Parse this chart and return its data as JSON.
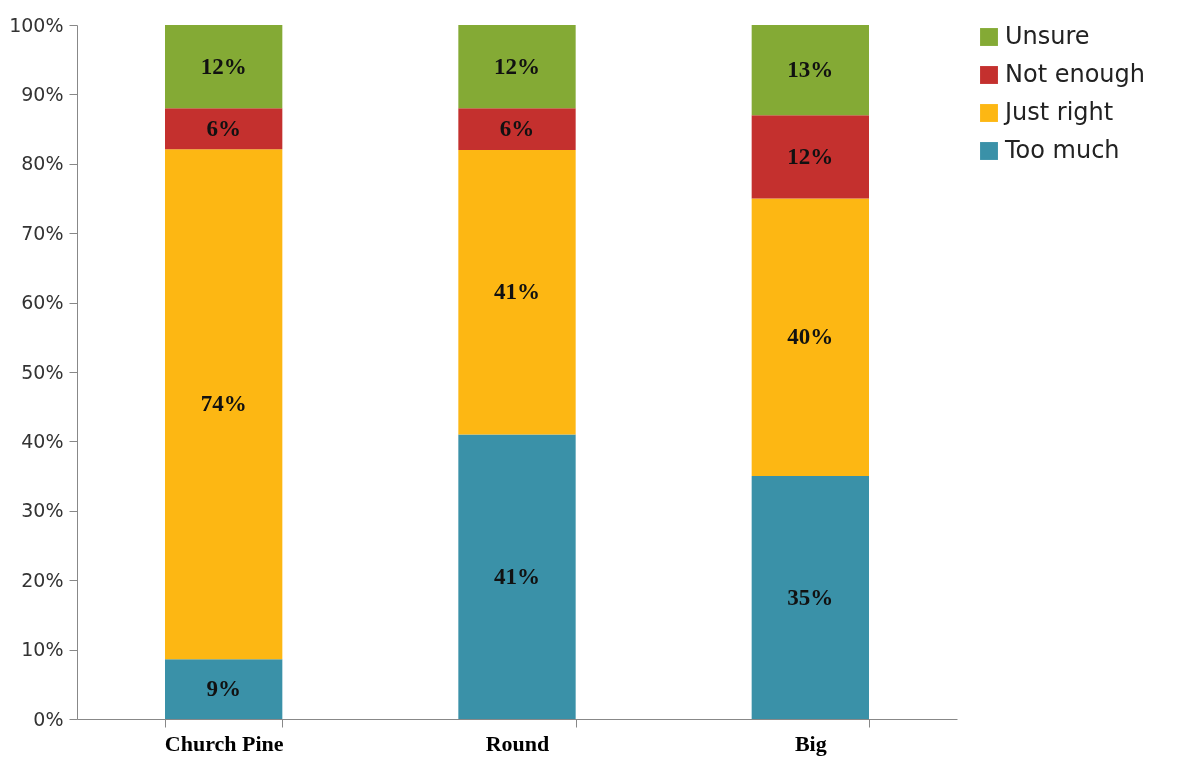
{
  "chart_data": {
    "type": "bar",
    "stacked": true,
    "categories": [
      "Church Pine",
      "Round",
      "Big"
    ],
    "series": [
      {
        "name": "Too much",
        "color": "#3a91a8",
        "values": [
          8.6,
          41,
          35
        ]
      },
      {
        "name": "Just right",
        "color": "#fdb713",
        "values": [
          73.5,
          41,
          40
        ]
      },
      {
        "name": "Not enough",
        "color": "#c4302e",
        "values": [
          5.9,
          6,
          12
        ]
      },
      {
        "name": "Unsure",
        "color": "#84aa35",
        "values": [
          12,
          12,
          13
        ]
      }
    ],
    "ylim": [
      0,
      100
    ],
    "yticks": [
      {
        "value": 0,
        "label": "0%"
      },
      {
        "value": 10,
        "label": "10%"
      },
      {
        "value": 20,
        "label": "20%"
      },
      {
        "value": 30,
        "label": "30%"
      },
      {
        "value": 40,
        "label": "40%"
      },
      {
        "value": 50,
        "label": "50%"
      },
      {
        "value": 60,
        "label": "60%"
      },
      {
        "value": 70,
        "label": "70%"
      },
      {
        "value": 80,
        "label": "80%"
      },
      {
        "value": 90,
        "label": "90%"
      },
      {
        "value": 100,
        "label": "100%"
      }
    ],
    "value_labels": [
      [
        "9%",
        "41%",
        "35%"
      ],
      [
        "74%",
        "41%",
        "40%"
      ],
      [
        "6%",
        "6%",
        "12%"
      ],
      [
        "12%",
        "12%",
        "13%"
      ]
    ],
    "grid": false,
    "legend": "right"
  }
}
